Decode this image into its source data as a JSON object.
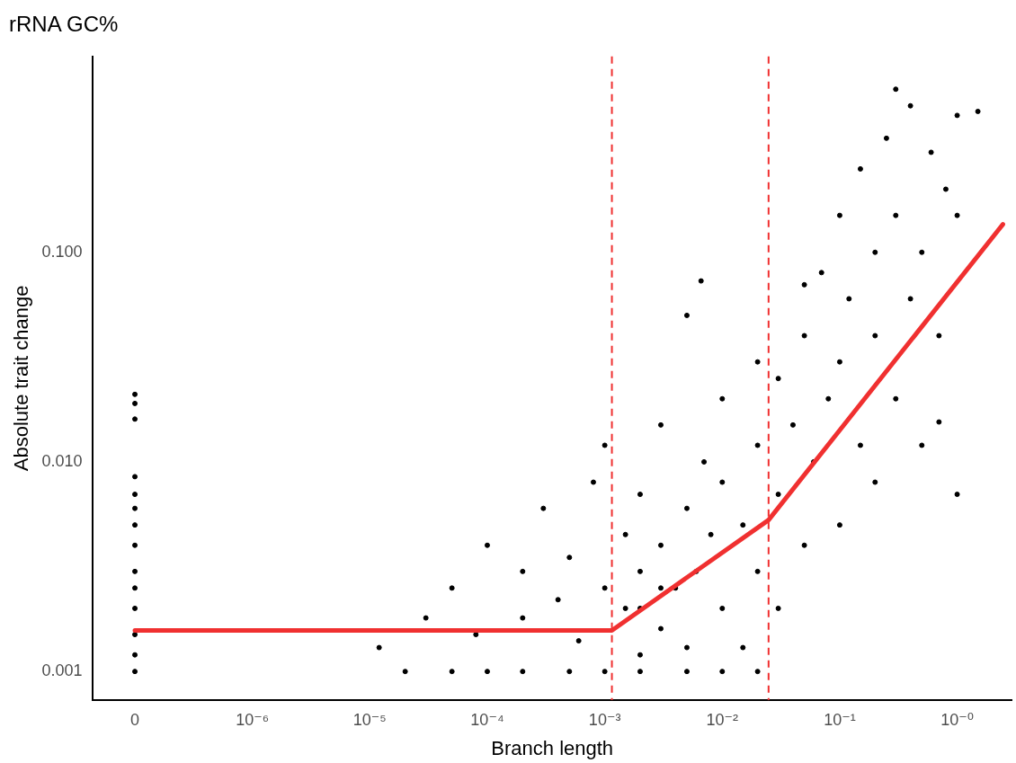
{
  "chart_data": {
    "type": "scatter",
    "title": "rRNA GC%",
    "xlabel": "Branch length",
    "ylabel": "Absolute trait change",
    "log": "xy",
    "grid": false,
    "legend": false,
    "marker": "circle",
    "xlim": [
      4.4e-08,
      2.9
    ],
    "xticks": [
      {
        "value": 1e-07,
        "label": "0"
      },
      {
        "value": 1e-06,
        "label": "10⁻⁶"
      },
      {
        "value": 1e-05,
        "label": "10⁻⁵"
      },
      {
        "value": 0.0001,
        "label": "10⁻⁴"
      },
      {
        "value": 0.001,
        "label": "10⁻³"
      },
      {
        "value": 0.01,
        "label": "10⁻²"
      },
      {
        "value": 0.1,
        "label": "10⁻¹"
      },
      {
        "value": 1,
        "label": "10⁻⁰"
      }
    ],
    "ylim": [
      0.00073,
      0.86
    ],
    "yticks": [
      {
        "value": 0.001,
        "label": "0.001"
      },
      {
        "value": 0.01,
        "label": "0.010"
      },
      {
        "value": 0.1,
        "label": "0.100"
      }
    ],
    "ref_lines": [
      {
        "axis": "x",
        "value": 0.00115,
        "color": "#f03030",
        "line_style": "dashed"
      },
      {
        "axis": "x",
        "value": 0.0248,
        "color": "#f03030",
        "line_style": "dashed"
      }
    ],
    "series": [
      {
        "type": "scatter",
        "color": "#000000",
        "x": [
          1e-07,
          1e-07,
          1e-07,
          1e-07,
          1e-07,
          1e-07,
          1e-07,
          1e-07,
          1e-07,
          1e-07,
          1e-07,
          1e-07,
          1e-07,
          1e-07,
          2e-05,
          5e-05,
          0.0001,
          0.0002,
          0.0005,
          0.001,
          0.002,
          0.005,
          0.01,
          0.02,
          1.2e-05,
          3e-05,
          5e-05,
          8e-05,
          0.0001,
          0.0002,
          0.0002,
          0.0003,
          0.0004,
          0.0005,
          0.0006,
          0.0008,
          0.001,
          0.001,
          0.0015,
          0.0015,
          0.002,
          0.002,
          0.002,
          0.003,
          0.003,
          0.003,
          0.004,
          0.005,
          0.005,
          0.006,
          0.007,
          0.008,
          0.01,
          0.01,
          0.01,
          0.015,
          0.015,
          0.02,
          0.02,
          0.03,
          0.03,
          0.03,
          0.04,
          0.05,
          0.05,
          0.06,
          0.07,
          0.08,
          0.1,
          0.1,
          0.1,
          0.12,
          0.15,
          0.15,
          0.2,
          0.2,
          0.2,
          0.25,
          0.3,
          0.3,
          0.4,
          0.4,
          0.5,
          0.5,
          0.6,
          0.7,
          0.8,
          1,
          1,
          1,
          0.05,
          0.3,
          0.02,
          0.005,
          0.002,
          0.003,
          0.0066,
          0.7,
          1.5
        ],
        "values": [
          0.001,
          0.0012,
          0.0015,
          0.002,
          0.0025,
          0.003,
          0.004,
          0.005,
          0.006,
          0.007,
          0.0085,
          0.016,
          0.019,
          0.021,
          0.001,
          0.001,
          0.001,
          0.001,
          0.001,
          0.001,
          0.001,
          0.001,
          0.001,
          0.001,
          0.0013,
          0.0018,
          0.0025,
          0.0015,
          0.004,
          0.003,
          0.0018,
          0.006,
          0.0022,
          0.0035,
          0.0014,
          0.008,
          0.0025,
          0.012,
          0.002,
          0.0045,
          0.0012,
          0.003,
          0.007,
          0.0016,
          0.004,
          0.015,
          0.0025,
          0.006,
          0.0013,
          0.003,
          0.01,
          0.0045,
          0.002,
          0.008,
          0.02,
          0.005,
          0.0013,
          0.012,
          0.003,
          0.007,
          0.002,
          0.025,
          0.015,
          0.004,
          0.04,
          0.01,
          0.08,
          0.02,
          0.005,
          0.03,
          0.15,
          0.06,
          0.012,
          0.25,
          0.04,
          0.1,
          0.008,
          0.35,
          0.02,
          0.15,
          0.06,
          0.5,
          0.1,
          0.012,
          0.3,
          0.04,
          0.2,
          0.15,
          0.45,
          0.007,
          0.07,
          0.6,
          0.03,
          0.05,
          0.002,
          0.0025,
          0.073,
          0.0155,
          0.47
        ]
      },
      {
        "type": "line",
        "color": "#f03030",
        "marker": "none",
        "x": [
          1e-07,
          0.00115,
          0.0248,
          2.45
        ],
        "values": [
          0.00157,
          0.00157,
          0.00528,
          0.136
        ]
      }
    ]
  }
}
